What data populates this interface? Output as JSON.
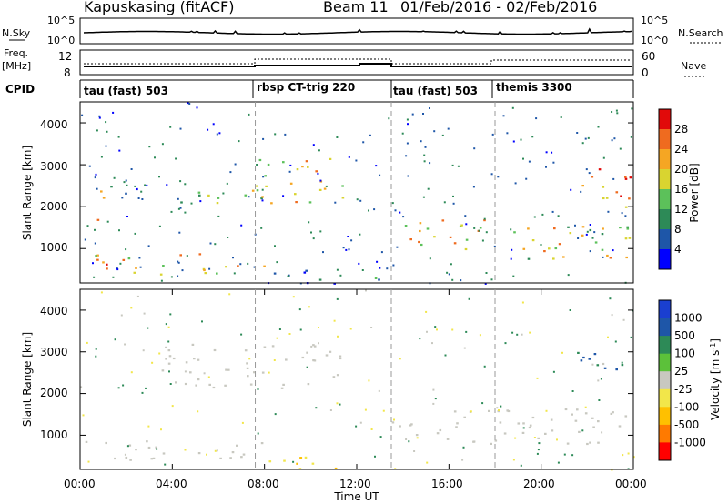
{
  "header": {
    "station": "Kapuskasing (fitACF)",
    "beam": "Beam 11",
    "date_range": "01/Feb/2016 - 02/Feb/2016"
  },
  "noise_panel": {
    "left_label": "N.Sky",
    "left_ticks": [
      "10^5",
      "10^0"
    ],
    "right_label": "N.Search",
    "right_ticks": [
      "10^5",
      "10^0"
    ]
  },
  "freq_panel": {
    "left_label_1": "Freq.",
    "left_label_2": "[MHz]",
    "left_ticks": [
      "12",
      "8"
    ],
    "right_label": "Nave",
    "right_ticks": [
      "60",
      "0"
    ]
  },
  "cpid_panel": {
    "label": "CPID",
    "segments": [
      {
        "name": "tau (fast) 503",
        "start_h": 0.0
      },
      {
        "name": "rbsp CT-trig 220",
        "start_h": 7.6
      },
      {
        "name": "tau (fast) 503",
        "start_h": 13.5
      },
      {
        "name": "themis 3300",
        "start_h": 18.0
      }
    ]
  },
  "power_panel": {
    "ylabel": "Slant Range [km]",
    "yticks": [
      "4000",
      "3000",
      "2000",
      "1000"
    ],
    "cbar_label": "Power [dB]",
    "cbar_ticks": [
      "28",
      "24",
      "20",
      "16",
      "12",
      "8",
      "4"
    ],
    "cbar_colors": [
      "#0000ff",
      "#1e56a8",
      "#2d8a57",
      "#5cc15a",
      "#d9d430",
      "#f5a623",
      "#ef6b1f",
      "#e10a0a"
    ]
  },
  "velocity_panel": {
    "ylabel": "Slant Range [km]",
    "yticks": [
      "4000",
      "3000",
      "2000",
      "1000"
    ],
    "cbar_label": "Velocity [m s",
    "cbar_label_sup": "-1",
    "cbar_label_end": "]",
    "cbar_ticks": [
      "1000",
      "500",
      "100",
      "25",
      "-25",
      "-100",
      "-500",
      "-1000"
    ],
    "cbar_colors": [
      "#ff0000",
      "#ff7a00",
      "#ffc000",
      "#f2e64a",
      "#c8c8c0",
      "#5cc13a",
      "#2d8a57",
      "#1e56a8",
      "#1a3fd0"
    ]
  },
  "xaxis": {
    "label": "Time UT",
    "ticks": [
      "00:00",
      "04:00",
      "08:00",
      "12:00",
      "16:00",
      "20:00",
      "00:00"
    ]
  },
  "chart_data": {
    "type": "heatmap",
    "title": "Kapuskasing (fitACF) Beam 11 01/Feb/2016 - 02/Feb/2016",
    "x_range_hours": [
      0,
      24
    ],
    "y_range_km": [
      180,
      4500
    ],
    "grid": false,
    "power_bands": [
      {
        "t0": 0.2,
        "t1": 1.0,
        "r0": 1600,
        "r1": 2400,
        "v": 20
      },
      {
        "t0": 0.6,
        "t1": 2.6,
        "r0": 2300,
        "r1": 2600,
        "v": 10
      },
      {
        "t0": 0.3,
        "t1": 8.0,
        "r0": 400,
        "r1": 900,
        "v": 22
      },
      {
        "t0": 3.5,
        "t1": 8.0,
        "r0": 2100,
        "r1": 2500,
        "v": 16
      },
      {
        "t0": 7.6,
        "t1": 11.5,
        "r0": 2100,
        "r1": 3200,
        "v": 18
      },
      {
        "t0": 8.0,
        "t1": 13.4,
        "r0": 180,
        "r1": 500,
        "v": 6
      },
      {
        "t0": 13.4,
        "t1": 18.0,
        "r0": 1000,
        "r1": 1700,
        "v": 20
      },
      {
        "t0": 18.0,
        "t1": 23.9,
        "r0": 700,
        "r1": 1600,
        "v": 18
      },
      {
        "t0": 21.5,
        "t1": 23.9,
        "r0": 2000,
        "r1": 3000,
        "v": 24
      }
    ],
    "velocity_bands": [
      {
        "t0": 0.2,
        "t1": 8.0,
        "r0": 400,
        "r1": 900,
        "v": 0
      },
      {
        "t0": 3.5,
        "t1": 11.5,
        "r0": 2100,
        "r1": 3200,
        "v": 0
      },
      {
        "t0": 8.0,
        "t1": 13.4,
        "r0": 180,
        "r1": 500,
        "v": -120
      },
      {
        "t0": 13.4,
        "t1": 23.9,
        "r0": 800,
        "r1": 1700,
        "v": 0
      },
      {
        "t0": 21.5,
        "t1": 23.9,
        "r0": 2300,
        "r1": 3100,
        "v": 150
      }
    ]
  }
}
